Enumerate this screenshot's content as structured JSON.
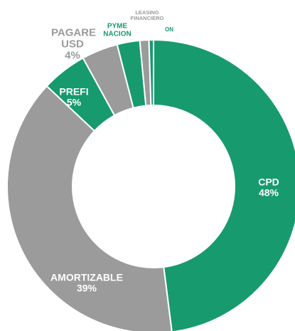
{
  "chart_data": {
    "type": "donut",
    "categories": [
      "CPD",
      "AMORTIZABLE",
      "PREFI",
      "PAGARE USD",
      "PYME NACION",
      "LEASING FINANCIERO",
      "ON"
    ],
    "values": [
      48,
      39,
      5,
      4,
      2.5,
      1,
      0.5
    ],
    "value_labels": [
      "48%",
      "39%",
      "5%",
      "4%",
      null,
      null,
      null
    ],
    "colors": [
      "#179a6e",
      "#9b9b9b",
      "#179a6e",
      "#9b9b9b",
      "#179a6e",
      "#9b9b9b",
      "#179a6e"
    ]
  }
}
